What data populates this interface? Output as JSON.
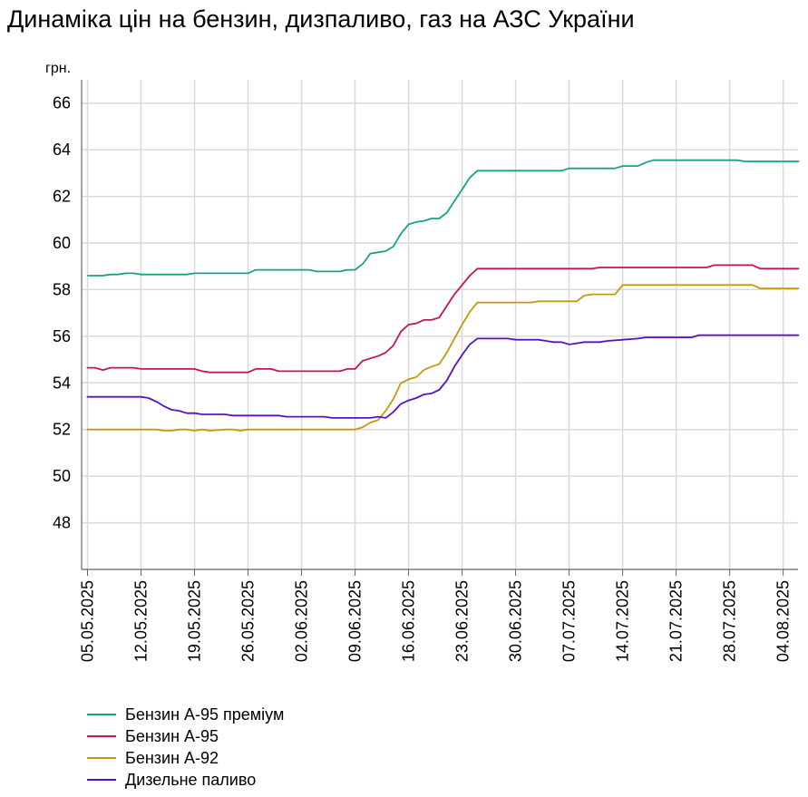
{
  "title": "Динаміка цін на бензин, дизпаливо, газ на АЗС України",
  "colors": {
    "premium95": "#18a185",
    "a95": "#c3145e",
    "a92": "#c49a0c",
    "diesel": "#5c10c4",
    "grid": "#d9d9d9",
    "axis": "#666666"
  },
  "chart_data": {
    "type": "line",
    "title": "Динаміка цін на бензин, дизпаливо, газ на АЗС України",
    "xlabel": "",
    "ylabel": "грн.",
    "ylim": [
      46,
      67
    ],
    "yticks": [
      48,
      50,
      52,
      54,
      56,
      58,
      60,
      62,
      64,
      66
    ],
    "xlim": [
      "2025-05-05",
      "2025-08-06"
    ],
    "xtick_labels": [
      "05.05.2025",
      "12.05.2025",
      "19.05.2025",
      "26.05.2025",
      "02.06.2025",
      "09.06.2025",
      "16.06.2025",
      "23.06.2025",
      "30.06.2025",
      "07.07.2025",
      "14.07.2025",
      "21.07.2025",
      "28.07.2025",
      "04.08.2025"
    ],
    "grid": true,
    "legend_position": "bottom-left",
    "series": [
      {
        "name": "Бензин А-95 преміум",
        "color_key": "premium95",
        "points": [
          [
            "2025-05-05",
            58.6
          ],
          [
            "2025-05-07",
            58.6
          ],
          [
            "2025-05-08",
            58.65
          ],
          [
            "2025-05-09",
            58.65
          ],
          [
            "2025-05-10",
            58.7
          ],
          [
            "2025-05-11",
            58.7
          ],
          [
            "2025-05-12",
            58.65
          ],
          [
            "2025-05-18",
            58.65
          ],
          [
            "2025-05-19",
            58.7
          ],
          [
            "2025-05-25",
            58.7
          ],
          [
            "2025-05-26",
            58.7
          ],
          [
            "2025-05-27",
            58.85
          ],
          [
            "2025-06-03",
            58.85
          ],
          [
            "2025-06-04",
            58.78
          ],
          [
            "2025-06-07",
            58.78
          ],
          [
            "2025-06-08",
            58.85
          ],
          [
            "2025-06-09",
            58.85
          ],
          [
            "2025-06-10",
            59.1
          ],
          [
            "2025-06-11",
            59.55
          ],
          [
            "2025-06-12",
            59.6
          ],
          [
            "2025-06-13",
            59.65
          ],
          [
            "2025-06-14",
            59.85
          ],
          [
            "2025-06-15",
            60.4
          ],
          [
            "2025-06-16",
            60.8
          ],
          [
            "2025-06-17",
            60.9
          ],
          [
            "2025-06-18",
            60.95
          ],
          [
            "2025-06-19",
            61.05
          ],
          [
            "2025-06-20",
            61.05
          ],
          [
            "2025-06-21",
            61.3
          ],
          [
            "2025-06-22",
            61.8
          ],
          [
            "2025-06-23",
            62.3
          ],
          [
            "2025-06-24",
            62.8
          ],
          [
            "2025-06-25",
            63.1
          ],
          [
            "2025-07-06",
            63.1
          ],
          [
            "2025-07-07",
            63.2
          ],
          [
            "2025-07-13",
            63.2
          ],
          [
            "2025-07-14",
            63.3
          ],
          [
            "2025-07-16",
            63.3
          ],
          [
            "2025-07-17",
            63.45
          ],
          [
            "2025-07-18",
            63.55
          ],
          [
            "2025-07-29",
            63.55
          ],
          [
            "2025-07-30",
            63.5
          ],
          [
            "2025-08-06",
            63.5
          ]
        ]
      },
      {
        "name": "Бензин А-95",
        "color_key": "a95",
        "points": [
          [
            "2025-05-05",
            54.65
          ],
          [
            "2025-05-06",
            54.65
          ],
          [
            "2025-05-07",
            54.55
          ],
          [
            "2025-05-08",
            54.65
          ],
          [
            "2025-05-11",
            54.65
          ],
          [
            "2025-05-12",
            54.6
          ],
          [
            "2025-05-19",
            54.6
          ],
          [
            "2025-05-20",
            54.5
          ],
          [
            "2025-05-21",
            54.45
          ],
          [
            "2025-05-26",
            54.45
          ],
          [
            "2025-05-27",
            54.6
          ],
          [
            "2025-05-29",
            54.6
          ],
          [
            "2025-05-30",
            54.5
          ],
          [
            "2025-06-07",
            54.5
          ],
          [
            "2025-06-08",
            54.6
          ],
          [
            "2025-06-09",
            54.6
          ],
          [
            "2025-06-10",
            54.95
          ],
          [
            "2025-06-11",
            55.05
          ],
          [
            "2025-06-12",
            55.15
          ],
          [
            "2025-06-13",
            55.3
          ],
          [
            "2025-06-14",
            55.6
          ],
          [
            "2025-06-15",
            56.2
          ],
          [
            "2025-06-16",
            56.5
          ],
          [
            "2025-06-17",
            56.55
          ],
          [
            "2025-06-18",
            56.7
          ],
          [
            "2025-06-19",
            56.7
          ],
          [
            "2025-06-20",
            56.8
          ],
          [
            "2025-06-21",
            57.3
          ],
          [
            "2025-06-22",
            57.8
          ],
          [
            "2025-06-23",
            58.2
          ],
          [
            "2025-06-24",
            58.6
          ],
          [
            "2025-06-25",
            58.9
          ],
          [
            "2025-07-10",
            58.9
          ],
          [
            "2025-07-11",
            58.95
          ],
          [
            "2025-07-25",
            58.95
          ],
          [
            "2025-07-26",
            59.05
          ],
          [
            "2025-07-31",
            59.05
          ],
          [
            "2025-08-01",
            58.9
          ],
          [
            "2025-08-06",
            58.9
          ]
        ]
      },
      {
        "name": "Бензин А-92",
        "color_key": "a92",
        "points": [
          [
            "2025-05-05",
            52.0
          ],
          [
            "2025-05-14",
            52.0
          ],
          [
            "2025-05-15",
            51.95
          ],
          [
            "2025-05-16",
            51.95
          ],
          [
            "2025-05-17",
            52.0
          ],
          [
            "2025-05-18",
            52.0
          ],
          [
            "2025-05-19",
            51.95
          ],
          [
            "2025-05-20",
            52.0
          ],
          [
            "2025-05-21",
            51.95
          ],
          [
            "2025-05-23",
            52.0
          ],
          [
            "2025-05-24",
            52.0
          ],
          [
            "2025-05-25",
            51.95
          ],
          [
            "2025-05-26",
            52.0
          ],
          [
            "2025-06-09",
            52.0
          ],
          [
            "2025-06-10",
            52.1
          ],
          [
            "2025-06-11",
            52.3
          ],
          [
            "2025-06-12",
            52.4
          ],
          [
            "2025-06-13",
            52.8
          ],
          [
            "2025-06-14",
            53.3
          ],
          [
            "2025-06-15",
            54.0
          ],
          [
            "2025-06-16",
            54.15
          ],
          [
            "2025-06-17",
            54.25
          ],
          [
            "2025-06-18",
            54.55
          ],
          [
            "2025-06-19",
            54.7
          ],
          [
            "2025-06-20",
            54.8
          ],
          [
            "2025-06-21",
            55.3
          ],
          [
            "2025-06-22",
            55.9
          ],
          [
            "2025-06-23",
            56.5
          ],
          [
            "2025-06-24",
            57.05
          ],
          [
            "2025-06-25",
            57.45
          ],
          [
            "2025-07-02",
            57.45
          ],
          [
            "2025-07-03",
            57.5
          ],
          [
            "2025-07-08",
            57.5
          ],
          [
            "2025-07-09",
            57.75
          ],
          [
            "2025-07-10",
            57.8
          ],
          [
            "2025-07-13",
            57.8
          ],
          [
            "2025-07-14",
            58.2
          ],
          [
            "2025-07-31",
            58.2
          ],
          [
            "2025-08-01",
            58.05
          ],
          [
            "2025-08-06",
            58.05
          ]
        ]
      },
      {
        "name": "Дизельне паливо",
        "color_key": "diesel",
        "points": [
          [
            "2025-05-05",
            53.4
          ],
          [
            "2025-05-12",
            53.4
          ],
          [
            "2025-05-13",
            53.35
          ],
          [
            "2025-05-14",
            53.2
          ],
          [
            "2025-05-15",
            53.0
          ],
          [
            "2025-05-16",
            52.85
          ],
          [
            "2025-05-17",
            52.8
          ],
          [
            "2025-05-18",
            52.7
          ],
          [
            "2025-05-19",
            52.7
          ],
          [
            "2025-05-20",
            52.65
          ],
          [
            "2025-05-23",
            52.65
          ],
          [
            "2025-05-24",
            52.6
          ],
          [
            "2025-05-30",
            52.6
          ],
          [
            "2025-05-31",
            52.55
          ],
          [
            "2025-06-05",
            52.55
          ],
          [
            "2025-06-06",
            52.5
          ],
          [
            "2025-06-11",
            52.5
          ],
          [
            "2025-06-12",
            52.55
          ],
          [
            "2025-06-13",
            52.5
          ],
          [
            "2025-06-14",
            52.75
          ],
          [
            "2025-06-15",
            53.1
          ],
          [
            "2025-06-16",
            53.25
          ],
          [
            "2025-06-17",
            53.35
          ],
          [
            "2025-06-18",
            53.5
          ],
          [
            "2025-06-19",
            53.55
          ],
          [
            "2025-06-20",
            53.7
          ],
          [
            "2025-06-21",
            54.1
          ],
          [
            "2025-06-22",
            54.7
          ],
          [
            "2025-06-23",
            55.2
          ],
          [
            "2025-06-24",
            55.65
          ],
          [
            "2025-06-25",
            55.9
          ],
          [
            "2025-06-29",
            55.9
          ],
          [
            "2025-06-30",
            55.85
          ],
          [
            "2025-07-03",
            55.85
          ],
          [
            "2025-07-04",
            55.8
          ],
          [
            "2025-07-05",
            55.75
          ],
          [
            "2025-07-06",
            55.75
          ],
          [
            "2025-07-07",
            55.65
          ],
          [
            "2025-07-08",
            55.7
          ],
          [
            "2025-07-09",
            55.75
          ],
          [
            "2025-07-11",
            55.75
          ],
          [
            "2025-07-12",
            55.8
          ],
          [
            "2025-07-14",
            55.85
          ],
          [
            "2025-07-16",
            55.9
          ],
          [
            "2025-07-17",
            55.95
          ],
          [
            "2025-07-23",
            55.95
          ],
          [
            "2025-07-24",
            56.05
          ],
          [
            "2025-08-06",
            56.05
          ]
        ]
      }
    ]
  }
}
